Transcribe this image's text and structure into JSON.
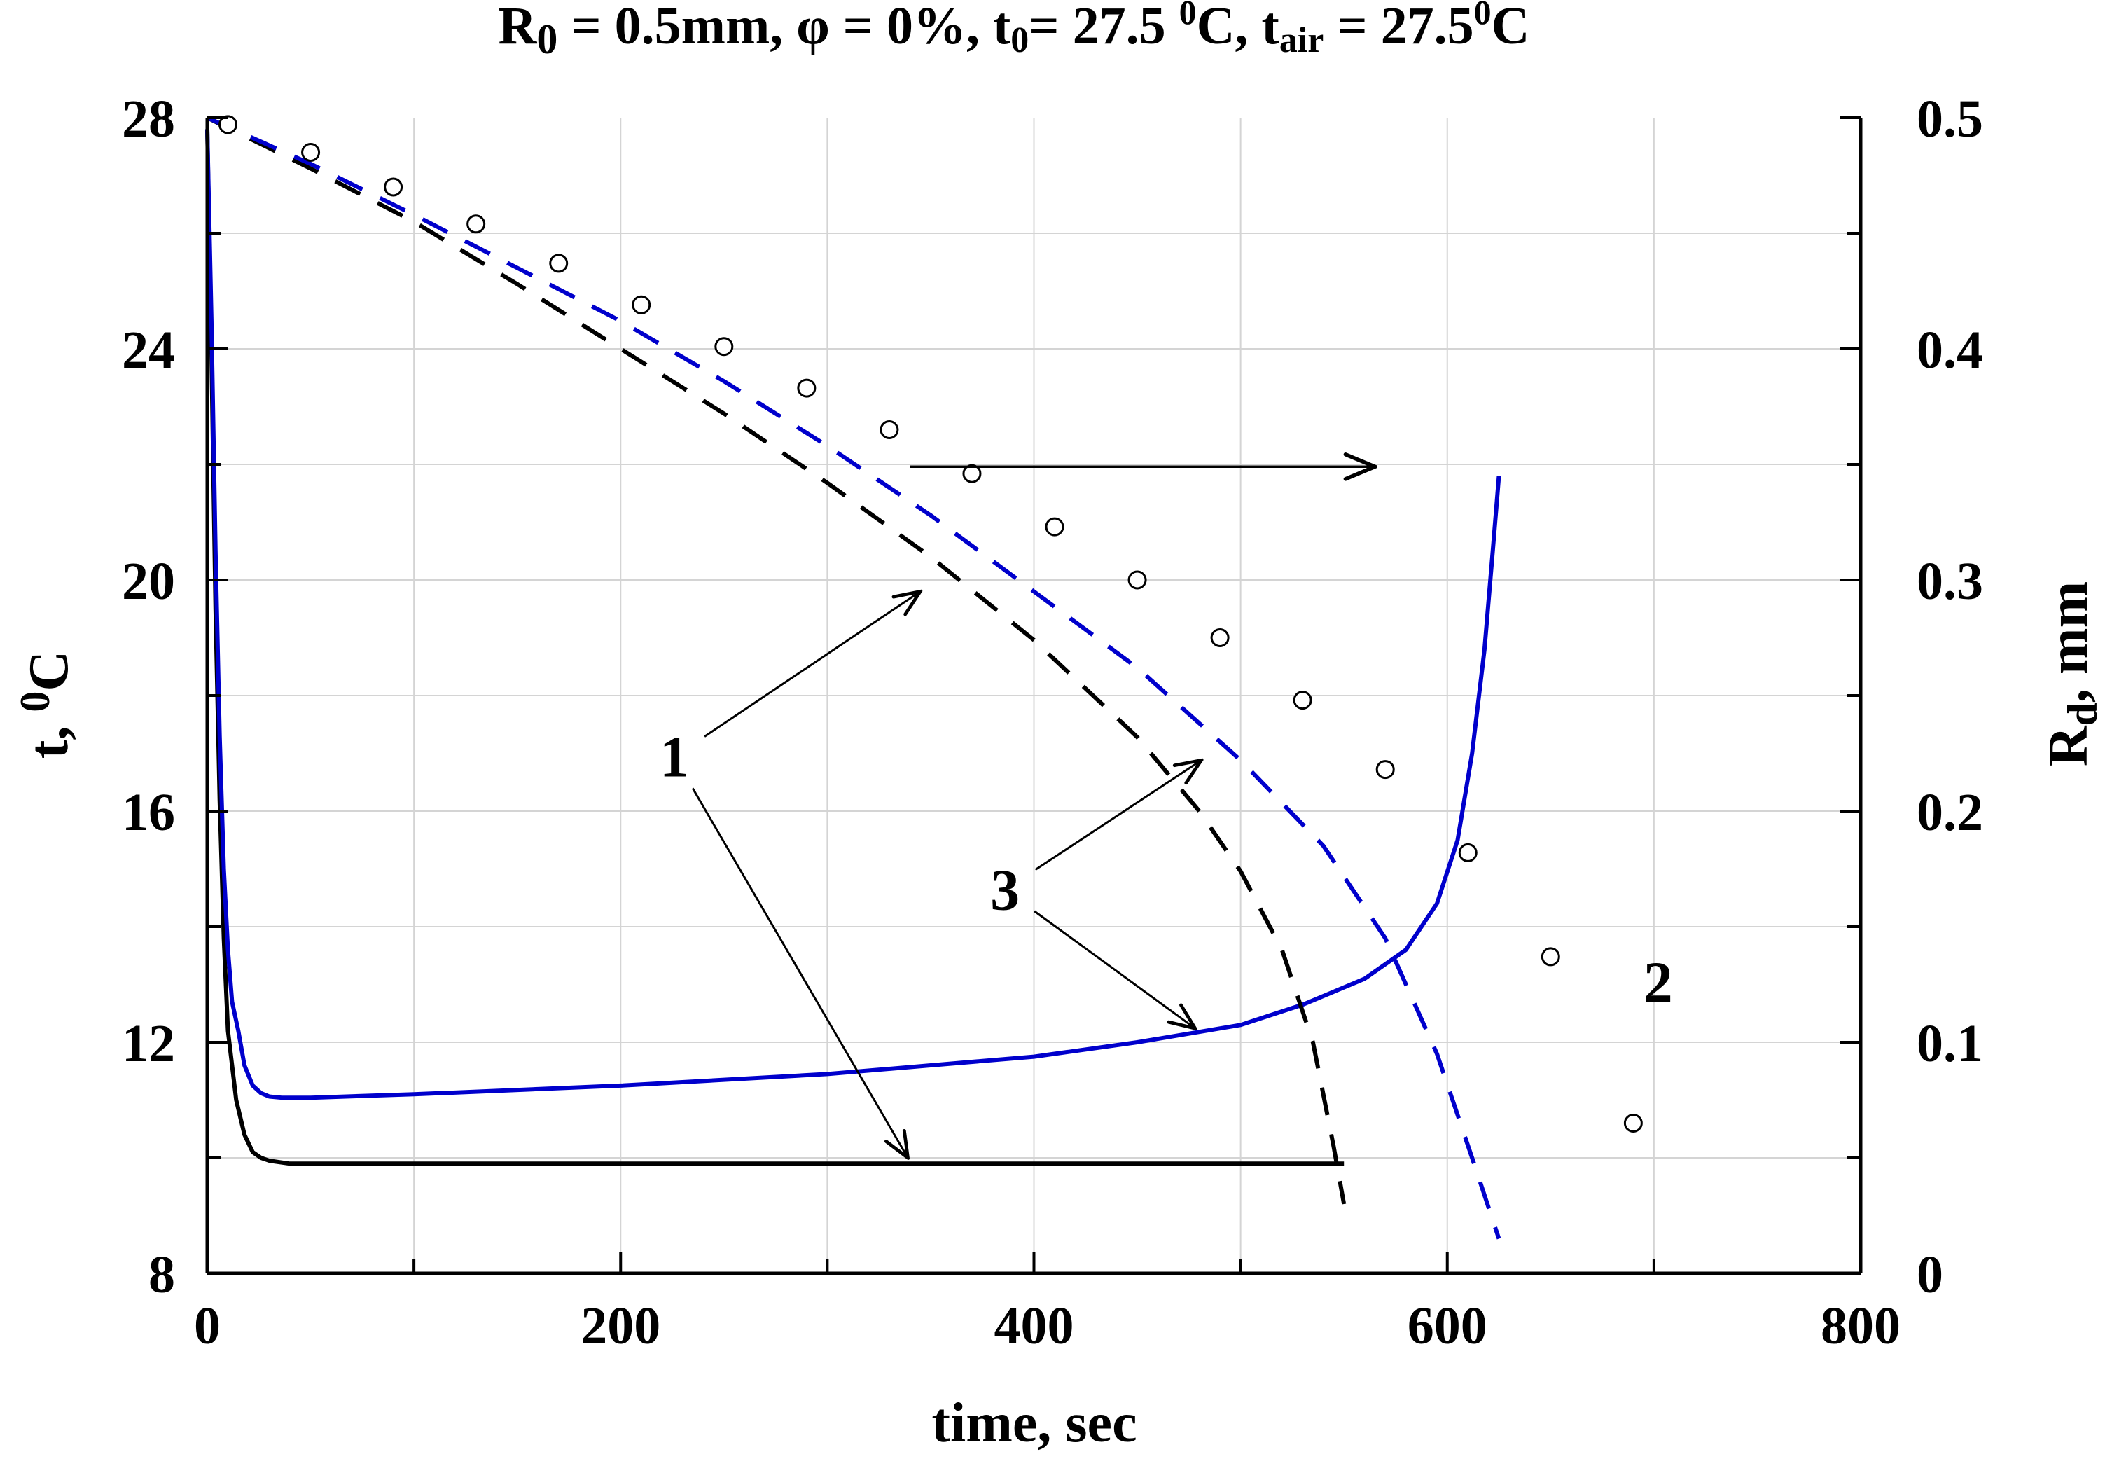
{
  "chart_data": {
    "type": "line",
    "title": {
      "pre": "R",
      "pre_sub": "0",
      "main": " = 0.5mm, φ = 0%, t",
      "t0_sub": "0",
      "t0_eq": "= 27.5 ",
      "deg1": "0",
      "unit1": "C, t",
      "air_sub": "air",
      "air_eq": " = 27.5",
      "deg2": "0",
      "unit2": "C"
    },
    "xlabel": "time, sec",
    "ylabel_left": {
      "main": "t, ",
      "sup": "0",
      "unit": "C"
    },
    "ylabel_right": {
      "main": "R",
      "sub": "d",
      "unit": ", mm"
    },
    "xlim": [
      0,
      800
    ],
    "ylim_left": [
      8,
      28
    ],
    "ylim_right": [
      0,
      0.5
    ],
    "x_ticks": [
      0,
      200,
      400,
      600,
      800
    ],
    "x_tick_labels": [
      "0",
      "200",
      "400",
      "600",
      "800"
    ],
    "y_left_ticks": [
      8,
      12,
      16,
      20,
      24,
      28
    ],
    "y_left_tick_labels": [
      "8",
      "12",
      "16",
      "20",
      "24",
      "28"
    ],
    "y_right_ticks": [
      0,
      0.1,
      0.2,
      0.3,
      0.4,
      0.5
    ],
    "y_right_tick_labels": [
      "0",
      "0.1",
      "0.2",
      "0.3",
      "0.4",
      "0.5"
    ],
    "grid": true,
    "series": [
      {
        "axis": "left",
        "style": "solid",
        "color": "#000000",
        "x": [
          0,
          2,
          4,
          6,
          8,
          10,
          14,
          18,
          22,
          26,
          30,
          40,
          60,
          100,
          200,
          300,
          400,
          500,
          550
        ],
        "y": [
          27.8,
          24.0,
          19.5,
          16.2,
          13.8,
          12.2,
          11.0,
          10.4,
          10.1,
          10.0,
          9.95,
          9.9,
          9.9,
          9.9,
          9.9,
          9.9,
          9.9,
          9.9,
          9.9
        ]
      },
      {
        "axis": "left",
        "style": "solid",
        "color": "#0000cc",
        "x": [
          0,
          2,
          4,
          6,
          8,
          10,
          12,
          15,
          18,
          22,
          26,
          30,
          36,
          50,
          100,
          200,
          300,
          400,
          450,
          500,
          530,
          560,
          580,
          595,
          605,
          612,
          618,
          622,
          625
        ],
        "y": [
          27.8,
          24.5,
          20.5,
          17.3,
          15.0,
          13.6,
          12.7,
          12.2,
          11.6,
          11.25,
          11.12,
          11.06,
          11.04,
          11.04,
          11.1,
          11.25,
          11.45,
          11.75,
          12.0,
          12.3,
          12.65,
          13.1,
          13.6,
          14.4,
          15.5,
          17.0,
          18.8,
          20.5,
          21.8
        ]
      },
      {
        "axis": "right",
        "style": "dashed",
        "color": "#000000",
        "x": [
          0,
          50,
          100,
          150,
          200,
          250,
          300,
          350,
          400,
          450,
          480,
          500,
          520,
          535,
          545,
          550
        ],
        "y": [
          0.5,
          0.478,
          0.455,
          0.428,
          0.4,
          0.372,
          0.342,
          0.31,
          0.274,
          0.232,
          0.2,
          0.174,
          0.14,
          0.1,
          0.055,
          0.03
        ]
      },
      {
        "axis": "right",
        "style": "dashed",
        "color": "#0000cc",
        "x": [
          0,
          50,
          100,
          150,
          200,
          250,
          300,
          350,
          400,
          450,
          500,
          540,
          570,
          595,
          612,
          625
        ],
        "y": [
          0.5,
          0.48,
          0.458,
          0.435,
          0.412,
          0.386,
          0.358,
          0.328,
          0.295,
          0.262,
          0.222,
          0.185,
          0.145,
          0.095,
          0.05,
          0.015
        ]
      },
      {
        "axis": "right",
        "style": "circles",
        "color": "#000000",
        "x": [
          10,
          50,
          90,
          130,
          170,
          210,
          250,
          290,
          330,
          370,
          410,
          450,
          490,
          530,
          570,
          610,
          650,
          690
        ],
        "y": [
          0.497,
          0.485,
          0.47,
          0.454,
          0.437,
          0.419,
          0.401,
          0.383,
          0.365,
          0.346,
          0.323,
          0.3,
          0.275,
          0.248,
          0.218,
          0.182,
          0.137,
          0.065
        ]
      }
    ],
    "annotations": [
      {
        "label": "1",
        "x": 226,
        "y_left": 16.6,
        "arrows_to": [
          [
            345,
            0.295
          ],
          [
            339,
            0.05
          ]
        ]
      },
      {
        "label": "2",
        "x": 702,
        "y_left": 12.7,
        "arrows_to": []
      },
      {
        "label": "3",
        "x": 386,
        "y_left": 14.3,
        "arrows_to": [
          [
            481,
            0.222
          ],
          [
            478,
            0.106
          ]
        ]
      },
      {
        "label": "",
        "from": [
          340,
          0.349
        ],
        "to": [
          565,
          0.349
        ]
      }
    ]
  }
}
